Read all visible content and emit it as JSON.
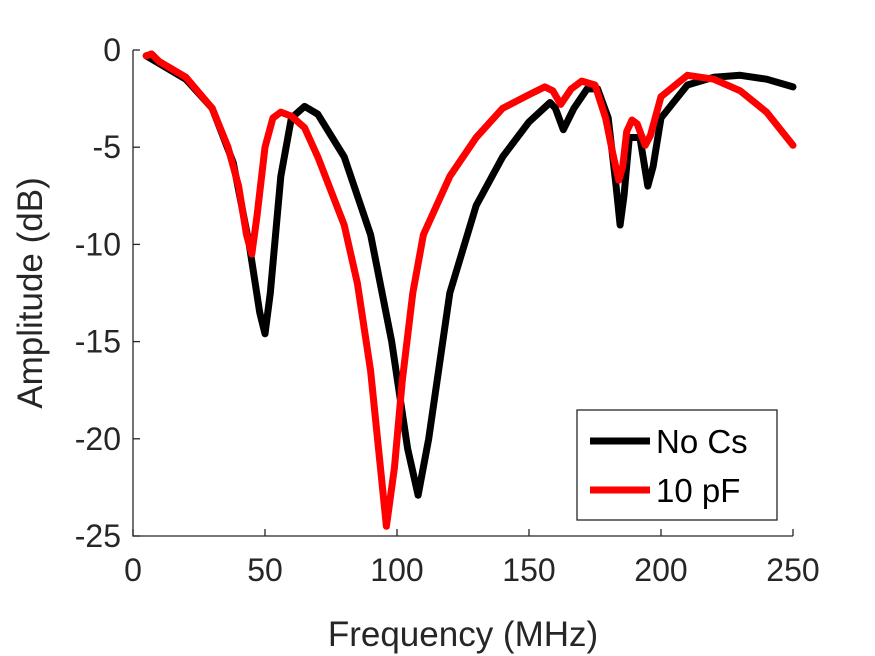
{
  "chart_data": {
    "type": "line",
    "title": "",
    "xlabel": "Frequency (MHz)",
    "ylabel": "Amplitude (dB)",
    "xlim": [
      0,
      250
    ],
    "ylim": [
      -25,
      0
    ],
    "xticks": [
      0,
      50,
      100,
      150,
      200,
      250
    ],
    "xtick_labels": [
      "0",
      "50",
      "100",
      "150",
      "200",
      "250"
    ],
    "yticks": [
      0,
      -5,
      -10,
      -15,
      -20,
      -25
    ],
    "ytick_labels": [
      "0",
      "-5",
      "-10",
      "-15",
      "-20",
      "-25"
    ],
    "grid": false,
    "legend_position": "bottom-right",
    "series": [
      {
        "name": "No Cs",
        "color": "#000000",
        "x": [
          5,
          10,
          20,
          30,
          38,
          44,
          48,
          50,
          52,
          56,
          60,
          65,
          70,
          80,
          90,
          98,
          104,
          108,
          112,
          120,
          130,
          140,
          150,
          158,
          160,
          163,
          167,
          172,
          176,
          180,
          183,
          184.5,
          186,
          188,
          192,
          195,
          197,
          200,
          210,
          220,
          230,
          240,
          250
        ],
        "y": [
          -0.3,
          -0.7,
          -1.5,
          -3.0,
          -5.8,
          -10.0,
          -13.5,
          -14.6,
          -12.5,
          -6.5,
          -3.5,
          -2.9,
          -3.3,
          -5.5,
          -9.5,
          -15.0,
          -20.5,
          -22.9,
          -20.0,
          -12.5,
          -8.0,
          -5.5,
          -3.7,
          -2.7,
          -3.0,
          -4.1,
          -3.0,
          -2.0,
          -2.0,
          -3.5,
          -7.0,
          -9.0,
          -7.5,
          -4.5,
          -4.5,
          -7.0,
          -6.0,
          -3.5,
          -1.8,
          -1.4,
          -1.3,
          -1.5,
          -1.9
        ]
      },
      {
        "name": "10 pF",
        "color": "#ff0000",
        "x": [
          5,
          7,
          10,
          20,
          30,
          36,
          40,
          43,
          45,
          47,
          50,
          53,
          56,
          60,
          65,
          70,
          80,
          85,
          90,
          93,
          96,
          99,
          102,
          106,
          110,
          120,
          130,
          140,
          150,
          156,
          159,
          162,
          166,
          170,
          175,
          179,
          182,
          184,
          185.5,
          187,
          189,
          191,
          194,
          196,
          200,
          210,
          220,
          230,
          240,
          250
        ],
        "y": [
          -0.3,
          -0.2,
          -0.6,
          -1.4,
          -3.0,
          -5.0,
          -7.0,
          -9.5,
          -10.5,
          -8.5,
          -5.0,
          -3.5,
          -3.2,
          -3.4,
          -4.0,
          -5.5,
          -9.0,
          -12.0,
          -16.5,
          -20.5,
          -24.5,
          -21.5,
          -17.0,
          -12.5,
          -9.5,
          -6.5,
          -4.5,
          -3.0,
          -2.3,
          -1.9,
          -2.1,
          -2.8,
          -2.0,
          -1.6,
          -1.8,
          -3.5,
          -5.5,
          -6.7,
          -6.0,
          -4.2,
          -3.6,
          -3.8,
          -4.9,
          -4.4,
          -2.4,
          -1.3,
          -1.5,
          -2.1,
          -3.2,
          -4.9
        ]
      }
    ]
  }
}
